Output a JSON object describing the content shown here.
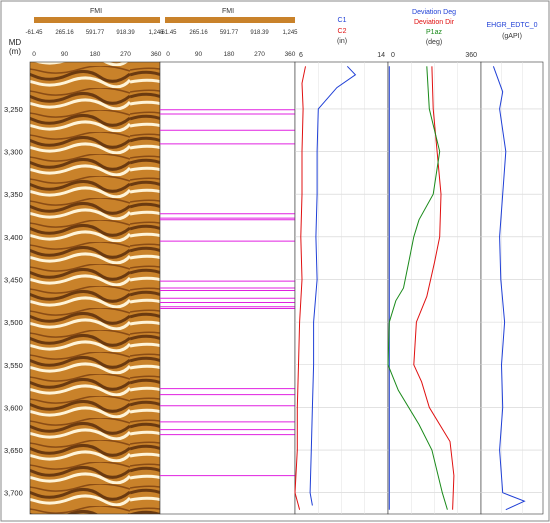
{
  "depth_axis": {
    "label": "MD",
    "unit": "(m)",
    "ticks": [
      3250,
      3300,
      3350,
      3400,
      3450,
      3500,
      3550,
      3600,
      3650,
      3700
    ],
    "tick_labels": [
      "3,250",
      "3,300",
      "3,350",
      "3,400",
      "3,450",
      "3,500",
      "3,550",
      "3,600",
      "3,650",
      "3,700"
    ],
    "range": [
      3195,
      3725
    ]
  },
  "tracks": [
    {
      "title": "FMI",
      "color_scale_labels": [
        "-61.45",
        "265.16",
        "591.77",
        "918.39",
        "1,245"
      ],
      "azimuth_ticks": [
        "0",
        "90",
        "180",
        "270",
        "360"
      ]
    },
    {
      "title": "FMI",
      "color_scale_labels": [
        "-61.45",
        "265.16",
        "591.77",
        "918.39",
        "1,245"
      ],
      "azimuth_ticks": [
        "0",
        "90",
        "180",
        "270",
        "360"
      ]
    },
    {
      "curves": [
        "C1",
        "C2"
      ],
      "unit": "(in)",
      "scale_labels": [
        "6",
        "14"
      ],
      "colors": [
        "#1f3fd6",
        "#e01010"
      ],
      "range": [
        6,
        14
      ]
    },
    {
      "curves": [
        "Deviation Deg",
        "Deviation Dir",
        "P1az"
      ],
      "unit": "(deg)",
      "scale_labels": [
        "0",
        "360"
      ],
      "colors": [
        "#1f3fd6",
        "#e01010",
        "#1a8a1a"
      ],
      "range": [
        0,
        360
      ]
    },
    {
      "curves": [
        "EHGR_EDTC_0"
      ],
      "unit": "(gAPI)",
      "scale_labels": [],
      "colors": [
        "#1f3fd6"
      ]
    }
  ],
  "chart_data": {
    "type": "line",
    "x_axis": "depth (m)",
    "series": [
      {
        "name": "C1",
        "points": [
          [
            3200,
            10.5
          ],
          [
            3210,
            11.2
          ],
          [
            3225,
            9.6
          ],
          [
            3250,
            8.0
          ],
          [
            3300,
            7.9
          ],
          [
            3350,
            7.9
          ],
          [
            3400,
            7.8
          ],
          [
            3450,
            7.9
          ],
          [
            3500,
            7.6
          ],
          [
            3550,
            7.6
          ],
          [
            3600,
            7.5
          ],
          [
            3650,
            7.4
          ],
          [
            3700,
            7.3
          ],
          [
            3715,
            7.5
          ]
        ]
      },
      {
        "name": "C2",
        "points": [
          [
            3200,
            6.9
          ],
          [
            3220,
            6.6
          ],
          [
            3250,
            6.7
          ],
          [
            3300,
            6.6
          ],
          [
            3350,
            6.6
          ],
          [
            3400,
            6.5
          ],
          [
            3450,
            6.6
          ],
          [
            3500,
            6.4
          ],
          [
            3550,
            6.3
          ],
          [
            3600,
            6.2
          ],
          [
            3650,
            6.2
          ],
          [
            3700,
            6.0
          ],
          [
            3720,
            6.4
          ]
        ]
      },
      {
        "name": "Deviation Deg",
        "points": [
          [
            3200,
            5
          ],
          [
            3720,
            5
          ]
        ]
      },
      {
        "name": "Deviation Dir",
        "points": [
          [
            3200,
            170
          ],
          [
            3250,
            175
          ],
          [
            3300,
            190
          ],
          [
            3350,
            205
          ],
          [
            3400,
            200
          ],
          [
            3430,
            180
          ],
          [
            3470,
            150
          ],
          [
            3500,
            110
          ],
          [
            3550,
            100
          ],
          [
            3570,
            130
          ],
          [
            3600,
            160
          ],
          [
            3640,
            240
          ],
          [
            3680,
            255
          ],
          [
            3720,
            250
          ]
        ]
      },
      {
        "name": "P1az",
        "points": [
          [
            3200,
            150
          ],
          [
            3250,
            160
          ],
          [
            3300,
            200
          ],
          [
            3350,
            175
          ],
          [
            3380,
            120
          ],
          [
            3400,
            100
          ],
          [
            3430,
            80
          ],
          [
            3460,
            60
          ],
          [
            3475,
            30
          ],
          [
            3500,
            5
          ],
          [
            3550,
            0
          ],
          [
            3580,
            40
          ],
          [
            3620,
            120
          ],
          [
            3650,
            170
          ],
          [
            3700,
            210
          ],
          [
            3720,
            230
          ]
        ]
      },
      {
        "name": "EHGR_EDTC_0",
        "points": [
          [
            3200,
            0.2
          ],
          [
            3230,
            0.35
          ],
          [
            3250,
            0.3
          ],
          [
            3300,
            0.4
          ],
          [
            3350,
            0.35
          ],
          [
            3400,
            0.3
          ],
          [
            3450,
            0.32
          ],
          [
            3500,
            0.38
          ],
          [
            3550,
            0.33
          ],
          [
            3600,
            0.35
          ],
          [
            3650,
            0.3
          ],
          [
            3700,
            0.35
          ],
          [
            3710,
            0.7
          ],
          [
            3720,
            0.4
          ]
        ]
      }
    ]
  }
}
